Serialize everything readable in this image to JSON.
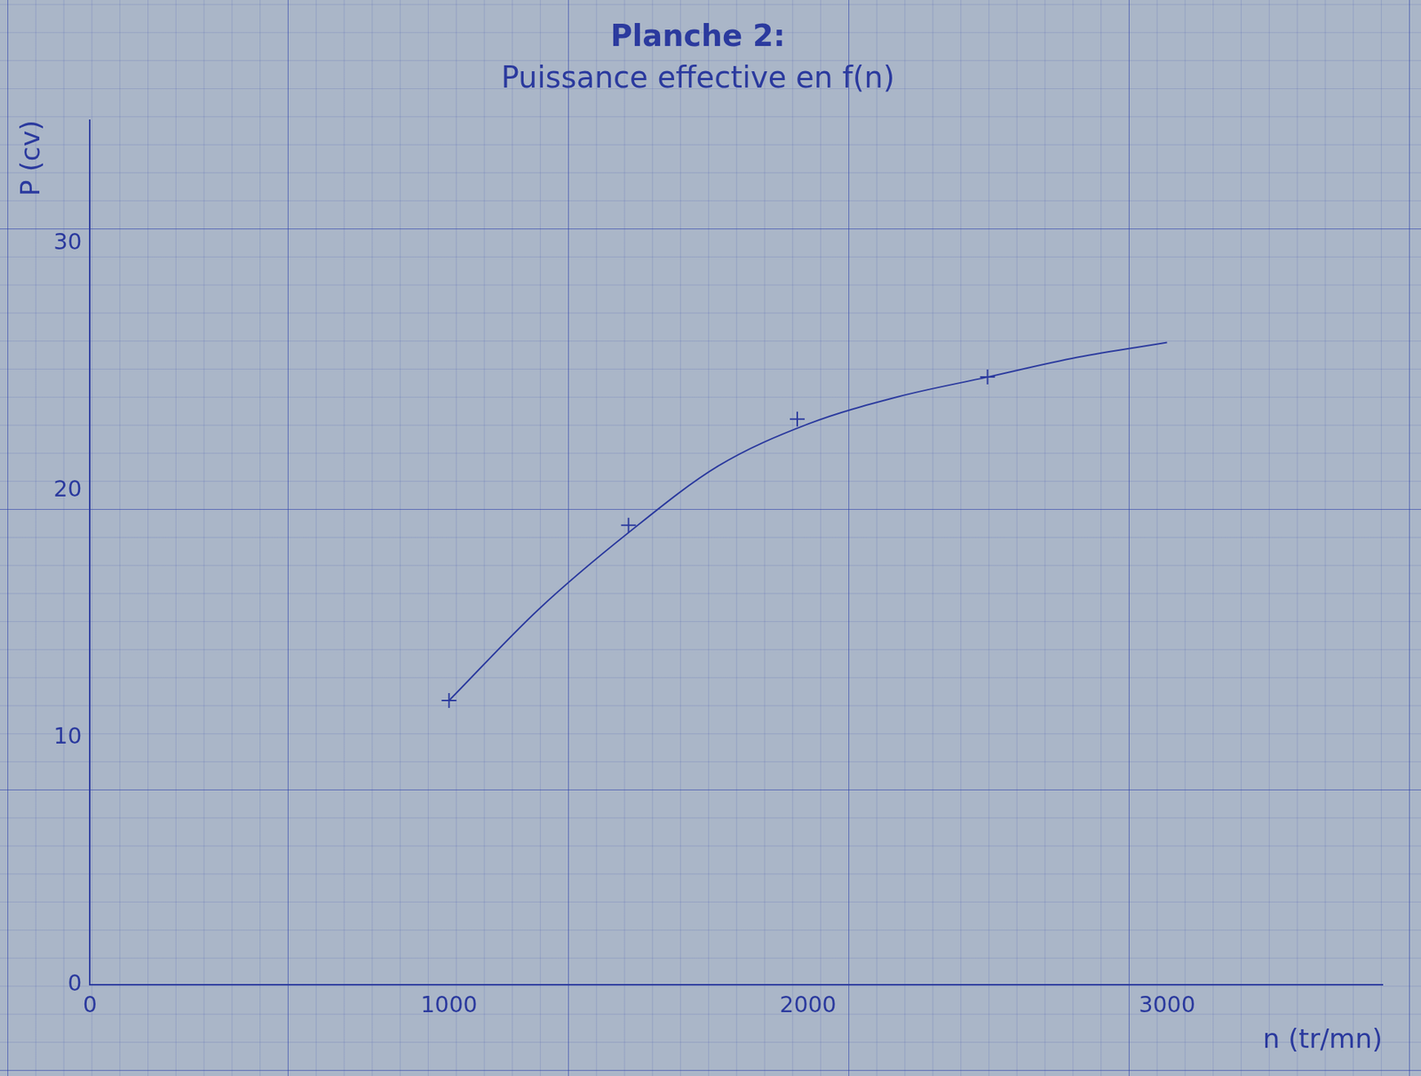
{
  "chart_data": {
    "type": "line",
    "title": "Planche 2:",
    "subtitle": "Puissance effective en f(n)",
    "x_label": "n (tr/mn)",
    "y_label": "P (cv)",
    "series": [
      {
        "type": "scatter",
        "marker": "cross",
        "color": "#2b3a9e",
        "x": [
          1000,
          1500,
          1970,
          2500
        ],
        "values": [
          11.5,
          18.6,
          22.9,
          24.6
        ]
      },
      {
        "type": "line",
        "line_style": "solid",
        "color": "#2b3a9e",
        "x": [
          1000,
          1250,
          1500,
          1750,
          2000,
          2250,
          2500,
          2750,
          3000
        ],
        "values": [
          11.5,
          15.2,
          18.3,
          21.0,
          22.7,
          23.8,
          24.6,
          25.4,
          26.0
        ]
      }
    ],
    "xlim": [
      0,
      3600
    ],
    "xticks": [
      0,
      1000,
      2000,
      3000
    ],
    "ylim": [
      0,
      35
    ],
    "yticks": [
      0,
      10,
      20,
      30
    ],
    "grid": false
  }
}
